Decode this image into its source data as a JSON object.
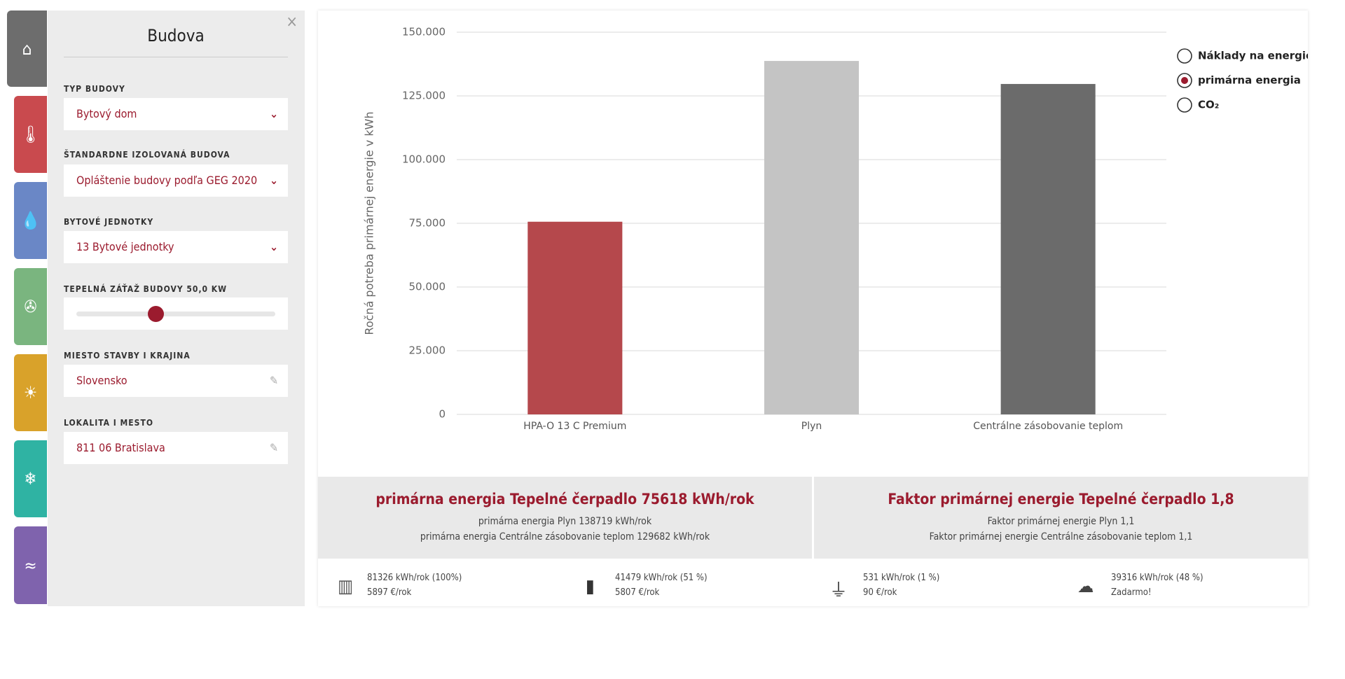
{
  "sidebar": {
    "title": "Budova",
    "fields": [
      {
        "label": "TYP BUDOVY",
        "value": "Bytový dom"
      },
      {
        "label": "ŠTANDARDNE IZOLOVANÁ BUDOVA",
        "value": "Opláštenie budovy podľa GEG 2020"
      },
      {
        "label": "BYTOVÉ JEDNOTKY",
        "value": "13 Bytové jednotky"
      },
      {
        "label": "TEPELNÁ ZÁŤAŽ BUDOVY 50,0 KW"
      },
      {
        "label": "MIESTO STAVBY I KRAJINA",
        "value": "Slovensko"
      },
      {
        "label": "LOKALITA I MESTO",
        "value": "811 06 Bratislava"
      }
    ]
  },
  "chart_data": {
    "type": "bar",
    "y_label": "Ročná potreba primárnej energie v kWh",
    "categories": [
      "HPA-O 13 C Premium",
      "Plyn",
      "Centrálne zásobovanie teplom"
    ],
    "values": [
      75618,
      138719,
      129682
    ],
    "colors": [
      "#b5484c",
      "#c4c4c4",
      "#6b6b6b"
    ],
    "ylim": [
      0,
      150000
    ],
    "yticks": [
      0,
      {
        "value": 25000,
        "label": "25.000"
      },
      {
        "value": 50000,
        "label": "50.000"
      },
      {
        "value": 75000,
        "label": "75.000"
      },
      {
        "value": 100000,
        "label": "100.000"
      },
      {
        "value": 125000,
        "label": "125.000"
      },
      {
        "value": 150000,
        "label": "150.000"
      }
    ],
    "grid": true,
    "options": [
      "Náklady na energie",
      "primárna energia",
      "CO₂"
    ],
    "selected_option": 1
  },
  "summary": {
    "left": {
      "headline": "primárna energia Tepelné čerpadlo 75618 kWh/rok",
      "lines": [
        "primárna energia Plyn 138719 kWh/rok",
        "primárna energia Centrálne zásobovanie teplom 129682 kWh/rok"
      ]
    },
    "right": {
      "headline": "Faktor primárnej energie Tepelné čerpadlo 1,8",
      "lines": [
        "Faktor primárnej energie Plyn 1,1",
        "Faktor primárnej energie Centrálne zásobovanie teplom 1,1"
      ]
    }
  },
  "stats": [
    [
      "81326 kWh/rok (100%)",
      "5897 €/rok"
    ],
    [
      "41479 kWh/rok (51 %)",
      "5807 €/rok"
    ],
    [
      "531 kWh/rok (1 %)",
      "90 €/rok"
    ],
    [
      "39316 kWh/rok (48 %)",
      "Zadarmo!"
    ]
  ]
}
